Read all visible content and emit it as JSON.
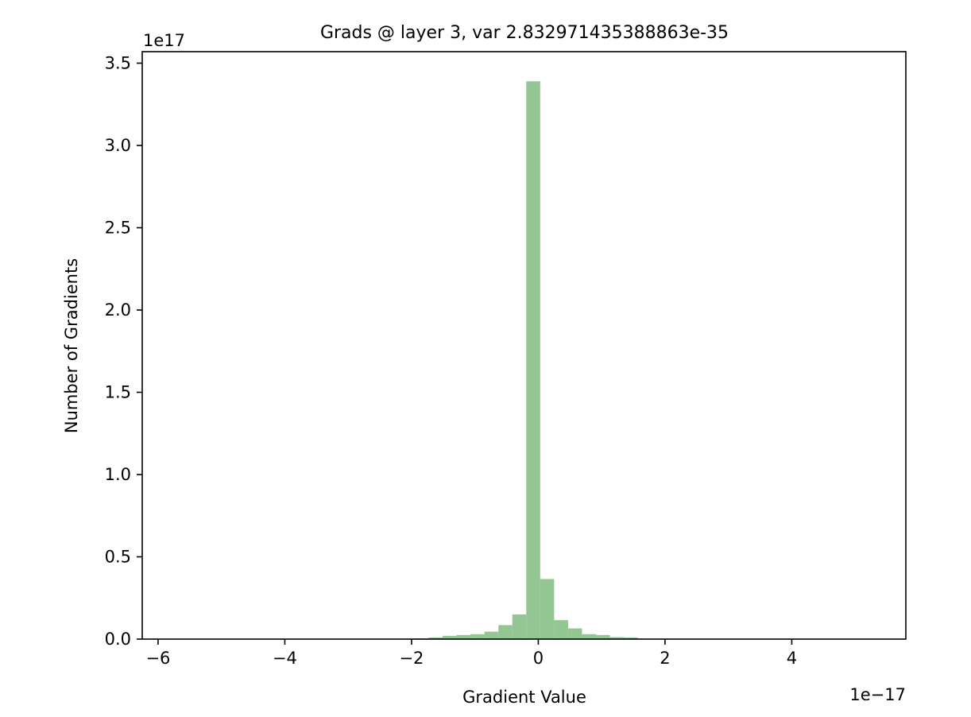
{
  "chart_data": {
    "type": "bar",
    "title": "Grads @ layer 3, var 2.832971435388863e-35",
    "xlabel": "Gradient Value",
    "ylabel": "Number of Gradients",
    "x_offset_label": "1e−17",
    "y_offset_label": "1e17",
    "xlim": [
      -6.25,
      5.8
    ],
    "ylim": [
      0,
      3.57
    ],
    "x_ticks": [
      {
        "value": -6,
        "label": "−6"
      },
      {
        "value": -4,
        "label": "−4"
      },
      {
        "value": -2,
        "label": "−2"
      },
      {
        "value": 0,
        "label": "0"
      },
      {
        "value": 2,
        "label": "2"
      },
      {
        "value": 4,
        "label": "4"
      }
    ],
    "y_ticks": [
      {
        "value": 0.0,
        "label": "0.0"
      },
      {
        "value": 0.5,
        "label": "0.5"
      },
      {
        "value": 1.0,
        "label": "1.0"
      },
      {
        "value": 1.5,
        "label": "1.5"
      },
      {
        "value": 2.0,
        "label": "2.0"
      },
      {
        "value": 2.5,
        "label": "2.5"
      },
      {
        "value": 3.0,
        "label": "3.0"
      },
      {
        "value": 3.5,
        "label": "3.5"
      }
    ],
    "bar_color": "#93c693",
    "bin_edges": [
      -1.95,
      -1.73,
      -1.51,
      -1.29,
      -1.07,
      -0.85,
      -0.63,
      -0.41,
      -0.19,
      0.03,
      0.25,
      0.47,
      0.69,
      0.91,
      1.13,
      1.35,
      1.57
    ],
    "values": [
      0.005,
      0.01,
      0.02,
      0.025,
      0.03,
      0.045,
      0.085,
      0.15,
      3.39,
      0.365,
      0.115,
      0.065,
      0.03,
      0.025,
      0.012,
      0.01
    ],
    "grid": false,
    "legend": "none"
  }
}
